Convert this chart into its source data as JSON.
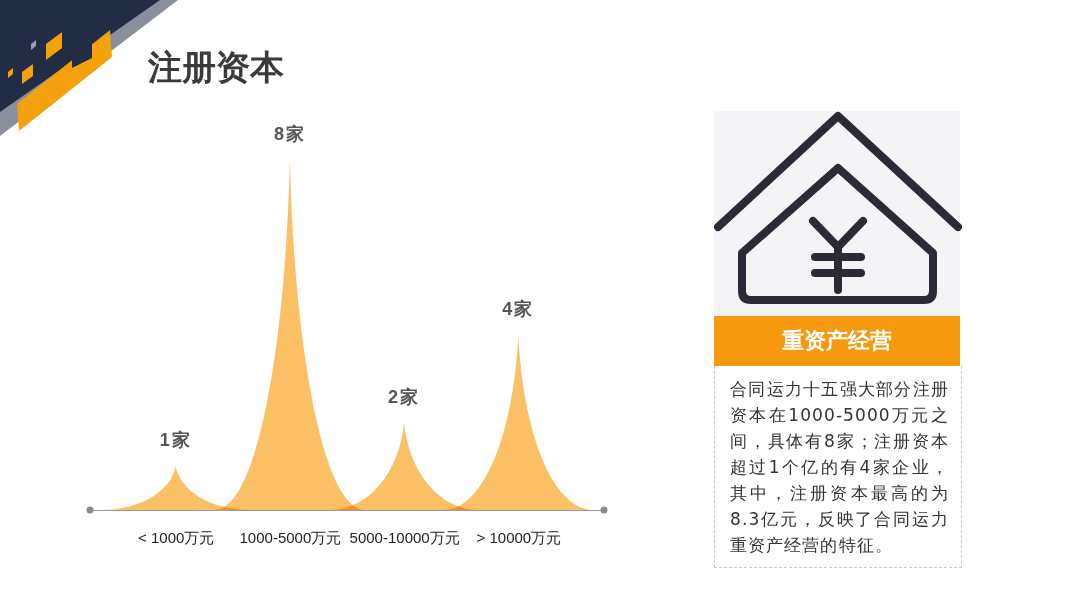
{
  "chart_data": [
    {
      "type": "bar",
      "title": "注册资本",
      "categories": [
        "< 1000万元",
        "1000-5000万元",
        "5000-10000万元",
        "> 10000万元"
      ],
      "values": [
        1,
        8,
        2,
        4
      ],
      "value_labels": [
        "1家",
        "8家",
        "2家",
        "4家"
      ],
      "color": "#fbbf66"
    },
    {
      "type": "other",
      "title": "重资产经营",
      "annotations": [
        "合同运力十五强大部分注册资本在1000-5000万元之间，具体有8家；注册资本超过1个亿的有4家企业，其中，注册资本最高的为8.3亿元，反映了合同运力重资产经营的特征。"
      ]
    }
  ]
}
